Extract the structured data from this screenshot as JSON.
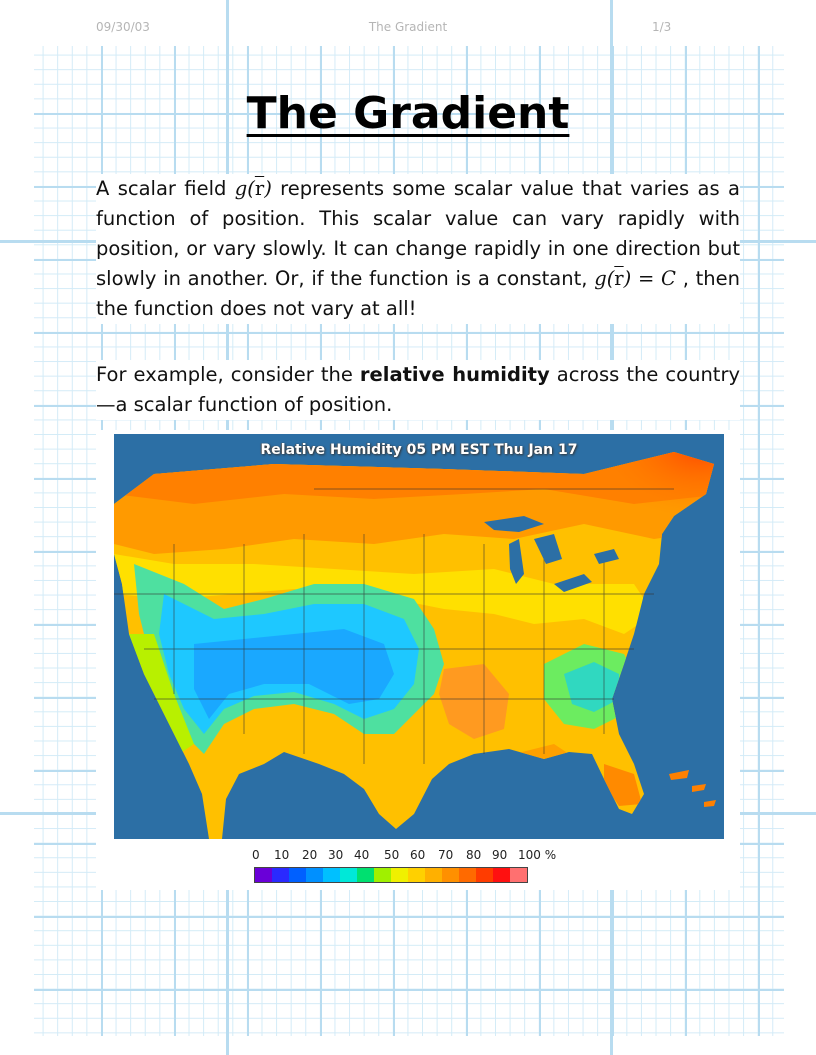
{
  "header": {
    "date": "09/30/03",
    "title": "The Gradient",
    "page": "1/3"
  },
  "document": {
    "title": "The Gradient",
    "para1": {
      "t1": "A scalar field ",
      "m1_func": "g",
      "m1_arg": "r",
      "t2": " represents some scalar value that varies as a function of position.  This scalar value can vary rapidly with position, or vary slowly.  It can change rapidly in one direction but slowly in another.  Or, if the function is a constant, ",
      "m2_func": "g",
      "m2_arg": "r",
      "m2_rhs": " = C",
      "t3": " , then the function does not vary at all!"
    },
    "para2": {
      "t1": "For example, consider the ",
      "bold": "relative humidity",
      "t2": " across the country—a scalar function of position."
    }
  },
  "map": {
    "title": "Relative Humidity 05 PM EST Thu Jan 17",
    "ocean_color": "#2c6fa5",
    "scale_labels": [
      "0",
      "10",
      "20",
      "30",
      "40",
      "50",
      "60",
      "70",
      "80",
      "90",
      "100 %"
    ],
    "scale_colors": [
      "#6a00d8",
      "#2a2aff",
      "#0060ff",
      "#0090ff",
      "#00c0ff",
      "#00e8d8",
      "#00e070",
      "#a0f000",
      "#f0f000",
      "#ffd000",
      "#ffb000",
      "#ff9000",
      "#ff6a00",
      "#ff3c00",
      "#ff1010",
      "#ff7070"
    ]
  }
}
